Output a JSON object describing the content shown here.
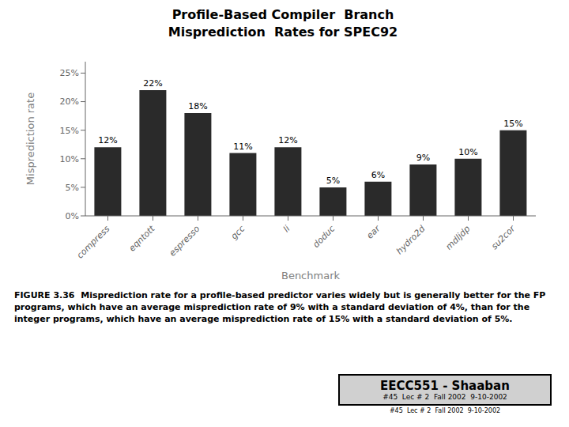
{
  "chart_data": {
    "type": "bar",
    "title": "Profile-Based Compiler  Branch\nMisprediction  Rates for SPEC92",
    "xlabel": "Benchmark",
    "ylabel": "Misprediction rate",
    "categories": [
      "compress",
      "eqntott",
      "espresso",
      "gcc",
      "li",
      "doduc",
      "ear",
      "hydro2d",
      "mdljdp",
      "su2cor"
    ],
    "values": [
      12,
      22,
      18,
      11,
      12,
      5,
      6,
      9,
      10,
      15
    ],
    "value_labels": [
      "12%",
      "22%",
      "18%",
      "11%",
      "12%",
      "5%",
      "6%",
      "9%",
      "10%",
      "15%"
    ],
    "color": "#2a2a2a",
    "ylim": [
      0,
      27
    ],
    "yticks": [
      {
        "value": 0,
        "label": "0%"
      },
      {
        "value": 5,
        "label": "5%"
      },
      {
        "value": 10,
        "label": "10%"
      },
      {
        "value": 15,
        "label": "15%"
      },
      {
        "value": 20,
        "label": "20%"
      },
      {
        "value": 25,
        "label": "25%"
      }
    ],
    "grid": false,
    "legend": false,
    "data_labels": true,
    "annotations": [
      "FIGURE 3.36  Misprediction rate for a profile-based predictor varies widely but is generally better for the FP programs, which have an average misprediction rate of 9% with a standard deviation of 4%, than for the integer programs, which have an average misprediction rate of 15% with a standard deviation of 5%.",
      "EECC551 - Shaaban",
      "#45  Lec # 2  Fall 2002  9-10-2002",
      "#45  Lec # 2  Fall 2002  9-10-2002"
    ]
  }
}
